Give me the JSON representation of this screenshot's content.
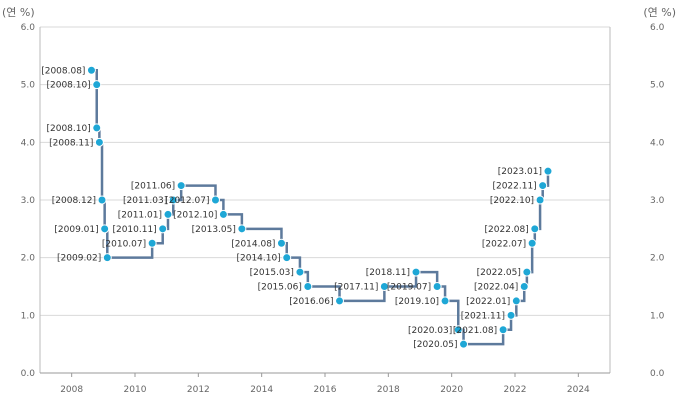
{
  "units": {
    "left": "(연 %)",
    "right": "(연 %)"
  },
  "chart_data": {
    "type": "line",
    "step": true,
    "xlim": [
      2007,
      2025
    ],
    "ylim": [
      0,
      6
    ],
    "x_ticks": [
      "2008",
      "2010",
      "2012",
      "2014",
      "2016",
      "2018",
      "2020",
      "2022",
      "2024"
    ],
    "y_ticks": [
      "0.0",
      "1.0",
      "2.0",
      "3.0",
      "4.0",
      "5.0",
      "6.0"
    ],
    "grid": "horizontal",
    "line_color": "#5d7a9c",
    "point_color": "#1ea7d6",
    "points": [
      {
        "label": "[2008.08]",
        "value": 5.25
      },
      {
        "label": "[2008.10]",
        "value": 5.0
      },
      {
        "label": "[2008.10]",
        "value": 4.25
      },
      {
        "label": "[2008.11]",
        "value": 4.0
      },
      {
        "label": "[2008.12]",
        "value": 3.0
      },
      {
        "label": "[2009.01]",
        "value": 2.5
      },
      {
        "label": "[2009.02]",
        "value": 2.0
      },
      {
        "label": "[2010.07]",
        "value": 2.25
      },
      {
        "label": "[2010.11]",
        "value": 2.5
      },
      {
        "label": "[2011.01]",
        "value": 2.75
      },
      {
        "label": "[2011.03]",
        "value": 3.0
      },
      {
        "label": "[2011.06]",
        "value": 3.25
      },
      {
        "label": "[2012.07]",
        "value": 3.0
      },
      {
        "label": "[2012.10]",
        "value": 2.75
      },
      {
        "label": "[2013.05]",
        "value": 2.5
      },
      {
        "label": "[2014.08]",
        "value": 2.25
      },
      {
        "label": "[2014.10]",
        "value": 2.0
      },
      {
        "label": "[2015.03]",
        "value": 1.75
      },
      {
        "label": "[2015.06]",
        "value": 1.5
      },
      {
        "label": "[2016.06]",
        "value": 1.25
      },
      {
        "label": "[2017.11]",
        "value": 1.5
      },
      {
        "label": "[2018.11]",
        "value": 1.75
      },
      {
        "label": "[2019.07]",
        "value": 1.5
      },
      {
        "label": "[2019.10]",
        "value": 1.25
      },
      {
        "label": "[2020.03]",
        "value": 0.75
      },
      {
        "label": "[2020.05]",
        "value": 0.5
      },
      {
        "label": "[2021.08]",
        "value": 0.75
      },
      {
        "label": "[2021.11]",
        "value": 1.0
      },
      {
        "label": "[2022.01]",
        "value": 1.25
      },
      {
        "label": "[2022.04]",
        "value": 1.5
      },
      {
        "label": "[2022.05]",
        "value": 1.75
      },
      {
        "label": "[2022.07]",
        "value": 2.25
      },
      {
        "label": "[2022.08]",
        "value": 2.5
      },
      {
        "label": "[2022.10]",
        "value": 3.0
      },
      {
        "label": "[2022.11]",
        "value": 3.25
      },
      {
        "label": "[2023.01]",
        "value": 3.5
      }
    ]
  }
}
